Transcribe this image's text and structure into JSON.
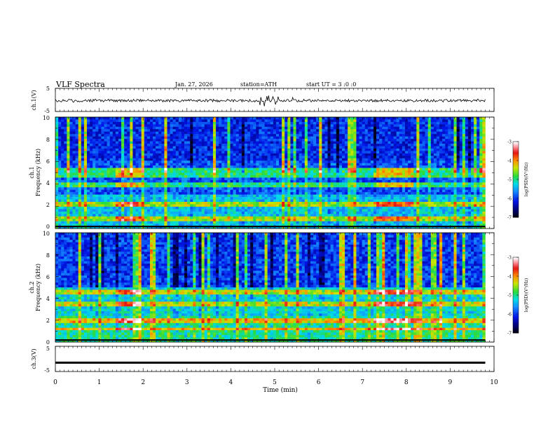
{
  "header": {
    "title": "VLF Spectra",
    "date": "Jan. 27, 2026",
    "station": "station=ATH",
    "start": "start UT = 3 :0 :0"
  },
  "chart_data": [
    {
      "type": "line",
      "name": "ch1-waveform",
      "ylabel": "ch.1(V)",
      "ylim": [
        -5,
        5
      ],
      "ytick_labels": [
        "5",
        "-5"
      ],
      "xlim": [
        0,
        10
      ],
      "color": "#000000",
      "description_value": "noisy trace around -0.2 V with spikes near 5 min"
    },
    {
      "type": "heatmap",
      "name": "ch1-spectrogram",
      "ylabel": "Frequency (kHz)",
      "channel_label": "ch.1",
      "ylim": [
        0,
        10
      ],
      "ytick_labels": [
        "10",
        "8",
        "6",
        "4",
        "2",
        "0"
      ],
      "xlim": [
        0,
        9.8
      ],
      "bands_khz": [
        2.2,
        4.0,
        4.8,
        5.3,
        0.8
      ],
      "colorbar": {
        "label": "log(PSD)(V²/Hz)",
        "ticks": [
          "-3",
          "-4",
          "-5",
          "-6",
          "-7"
        ],
        "range": [
          -7,
          -3
        ]
      }
    },
    {
      "type": "heatmap",
      "name": "ch2-spectrogram",
      "ylabel": "Frequency (kHz)",
      "channel_label": "ch.2",
      "ylim": [
        0,
        10
      ],
      "ytick_labels": [
        "10",
        "8",
        "6",
        "4",
        "2",
        "0"
      ],
      "xlim": [
        0,
        9.8
      ],
      "bands_khz": [
        2.0,
        3.4,
        4.5,
        1.2
      ],
      "colorbar": {
        "label": "log(PSD)(V²/Hz)",
        "ticks": [
          "-3",
          "-4",
          "-5",
          "-6",
          "-7"
        ],
        "range": [
          -7,
          -3
        ]
      }
    },
    {
      "type": "line",
      "name": "ch3-waveform",
      "ylabel": "ch.3(V)",
      "ylim": [
        -5,
        5
      ],
      "ytick_labels": [
        "5",
        "-5"
      ],
      "xlim": [
        0,
        10
      ],
      "color": "#000000",
      "values_note": "flat trace at about -1.5 V"
    }
  ],
  "xaxis": {
    "label": "Time (min)",
    "ticks": [
      "0",
      "1",
      "2",
      "3",
      "4",
      "5",
      "6",
      "7",
      "8",
      "9",
      "10"
    ],
    "range": [
      0,
      10
    ]
  },
  "labels": {
    "ch1_volt": "ch.1(V)",
    "ch1_freq_a": "ch.1",
    "ch1_freq_b": "Frequency (kHz)",
    "ch2_freq_a": "ch.2",
    "ch2_freq_b": "Frequency (kHz)",
    "ch3_volt": "ch.3(V)",
    "cbar": "log(PSD)(V²/Hz)"
  }
}
